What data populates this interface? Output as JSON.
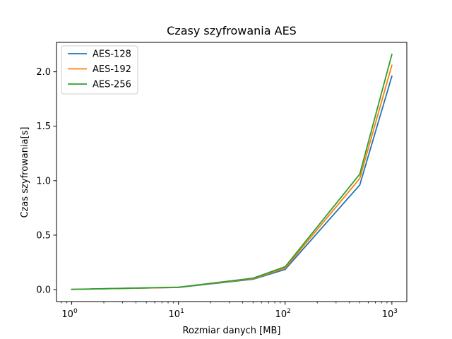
{
  "chart_data": {
    "type": "line",
    "title": "Czasy szyfrowania AES",
    "xlabel": "Rozmiar danych [MB]",
    "ylabel": "Czas szyfrowania[s]",
    "x_scale": "log",
    "xlim": [
      0.72,
      1380
    ],
    "ylim": [
      -0.11,
      2.27
    ],
    "x": [
      1,
      10,
      50,
      100,
      500,
      1000
    ],
    "x_ticks": [
      1,
      10,
      100,
      1000
    ],
    "x_tick_labels": [
      {
        "base": "10",
        "exp": "0"
      },
      {
        "base": "10",
        "exp": "1"
      },
      {
        "base": "10",
        "exp": "2"
      },
      {
        "base": "10",
        "exp": "3"
      }
    ],
    "y_ticks": [
      0,
      0.5,
      1.0,
      1.5,
      2.0
    ],
    "y_tick_labels": [
      "0.0",
      "0.5",
      "1.0",
      "1.5",
      "2.0"
    ],
    "grid": false,
    "legend_position": "top-left",
    "series": [
      {
        "name": "AES-128",
        "color": "#1f77b4",
        "values": [
          0.002,
          0.02,
          0.095,
          0.185,
          0.96,
          1.96
        ]
      },
      {
        "name": "AES-192",
        "color": "#ff7f0e",
        "values": [
          0.002,
          0.021,
          0.1,
          0.198,
          1.02,
          2.06
        ]
      },
      {
        "name": "AES-256",
        "color": "#2ca02c",
        "values": [
          0.002,
          0.022,
          0.105,
          0.21,
          1.06,
          2.16
        ]
      }
    ]
  }
}
